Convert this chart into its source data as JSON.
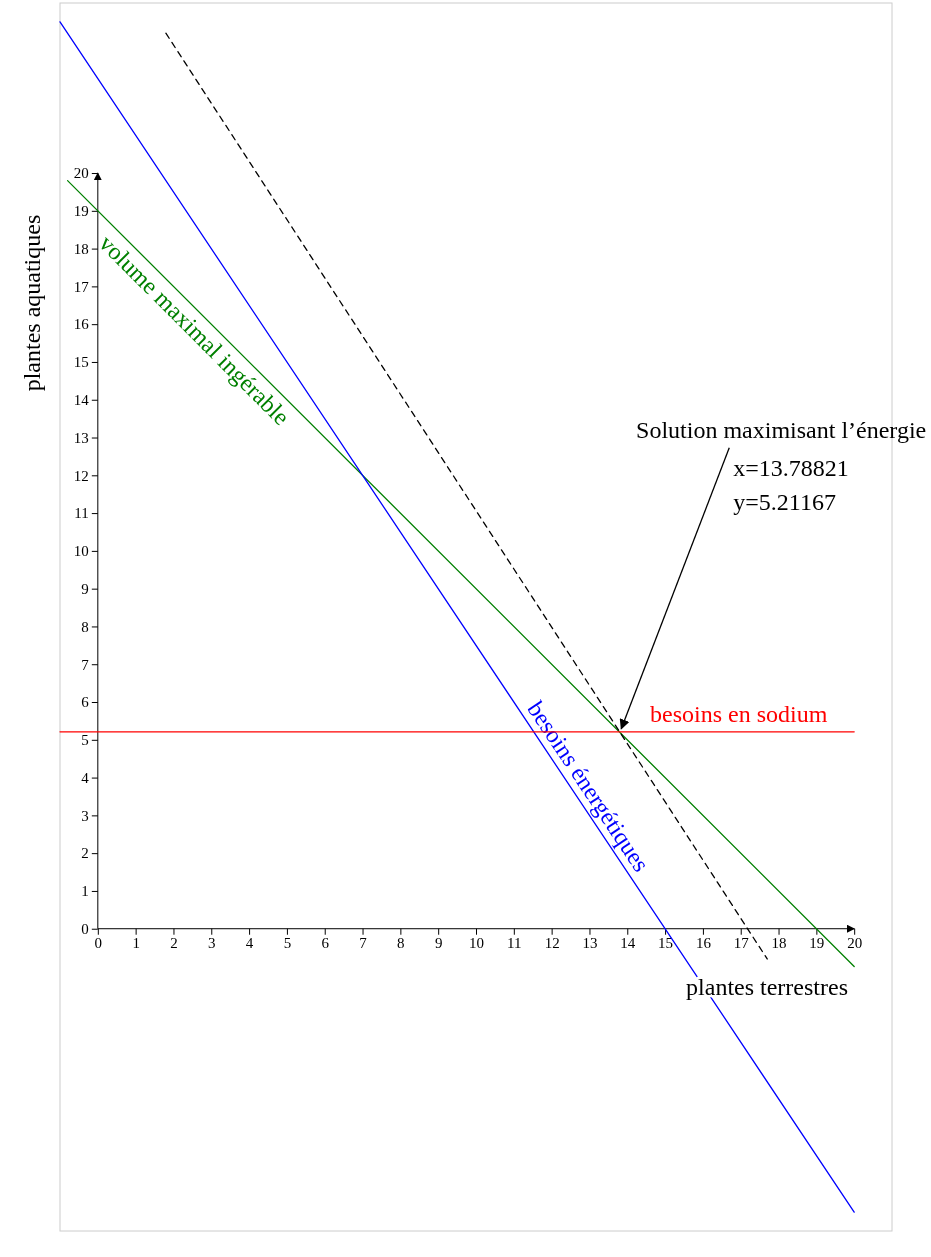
{
  "chart_data": {
    "type": "line",
    "xlabel": "plantes terrestres",
    "ylabel": "plantes aquatiques",
    "xlim": [
      -1,
      21
    ],
    "ylim": [
      -8,
      24.5
    ],
    "xticks": [
      0,
      1,
      2,
      3,
      4,
      5,
      6,
      7,
      8,
      9,
      10,
      11,
      12,
      13,
      14,
      15,
      16,
      17,
      18,
      19,
      20
    ],
    "yticks": [
      0,
      1,
      2,
      3,
      4,
      5,
      6,
      7,
      8,
      9,
      10,
      11,
      12,
      13,
      14,
      15,
      16,
      17,
      18,
      19,
      20
    ],
    "grid": false,
    "legend": false,
    "marker": "none",
    "series": [
      {
        "name": "volume maximal ingérable",
        "color": "#008000",
        "x": [
          -0.8,
          20
        ],
        "values": [
          19.8,
          -1
        ]
      },
      {
        "name": "besoins énergétiques",
        "color": "#0000ff",
        "x": [
          -1,
          20
        ],
        "values": [
          24,
          -7.5
        ]
      },
      {
        "name": "besoins en sodium",
        "color": "#ff0000",
        "x": [
          -1,
          20
        ],
        "values": [
          5.21167,
          5.21167
        ]
      },
      {
        "color": "#000000",
        "line_style": "dashed",
        "x": [
          1.8,
          17.7
        ],
        "values": [
          23.7,
          -0.8
        ]
      }
    ],
    "annotations": [
      {
        "text": "Solution maximisant l’énergie\nx=13.78821\ny=5.21167",
        "x": 13.78821,
        "y": 5.21167
      }
    ]
  }
}
